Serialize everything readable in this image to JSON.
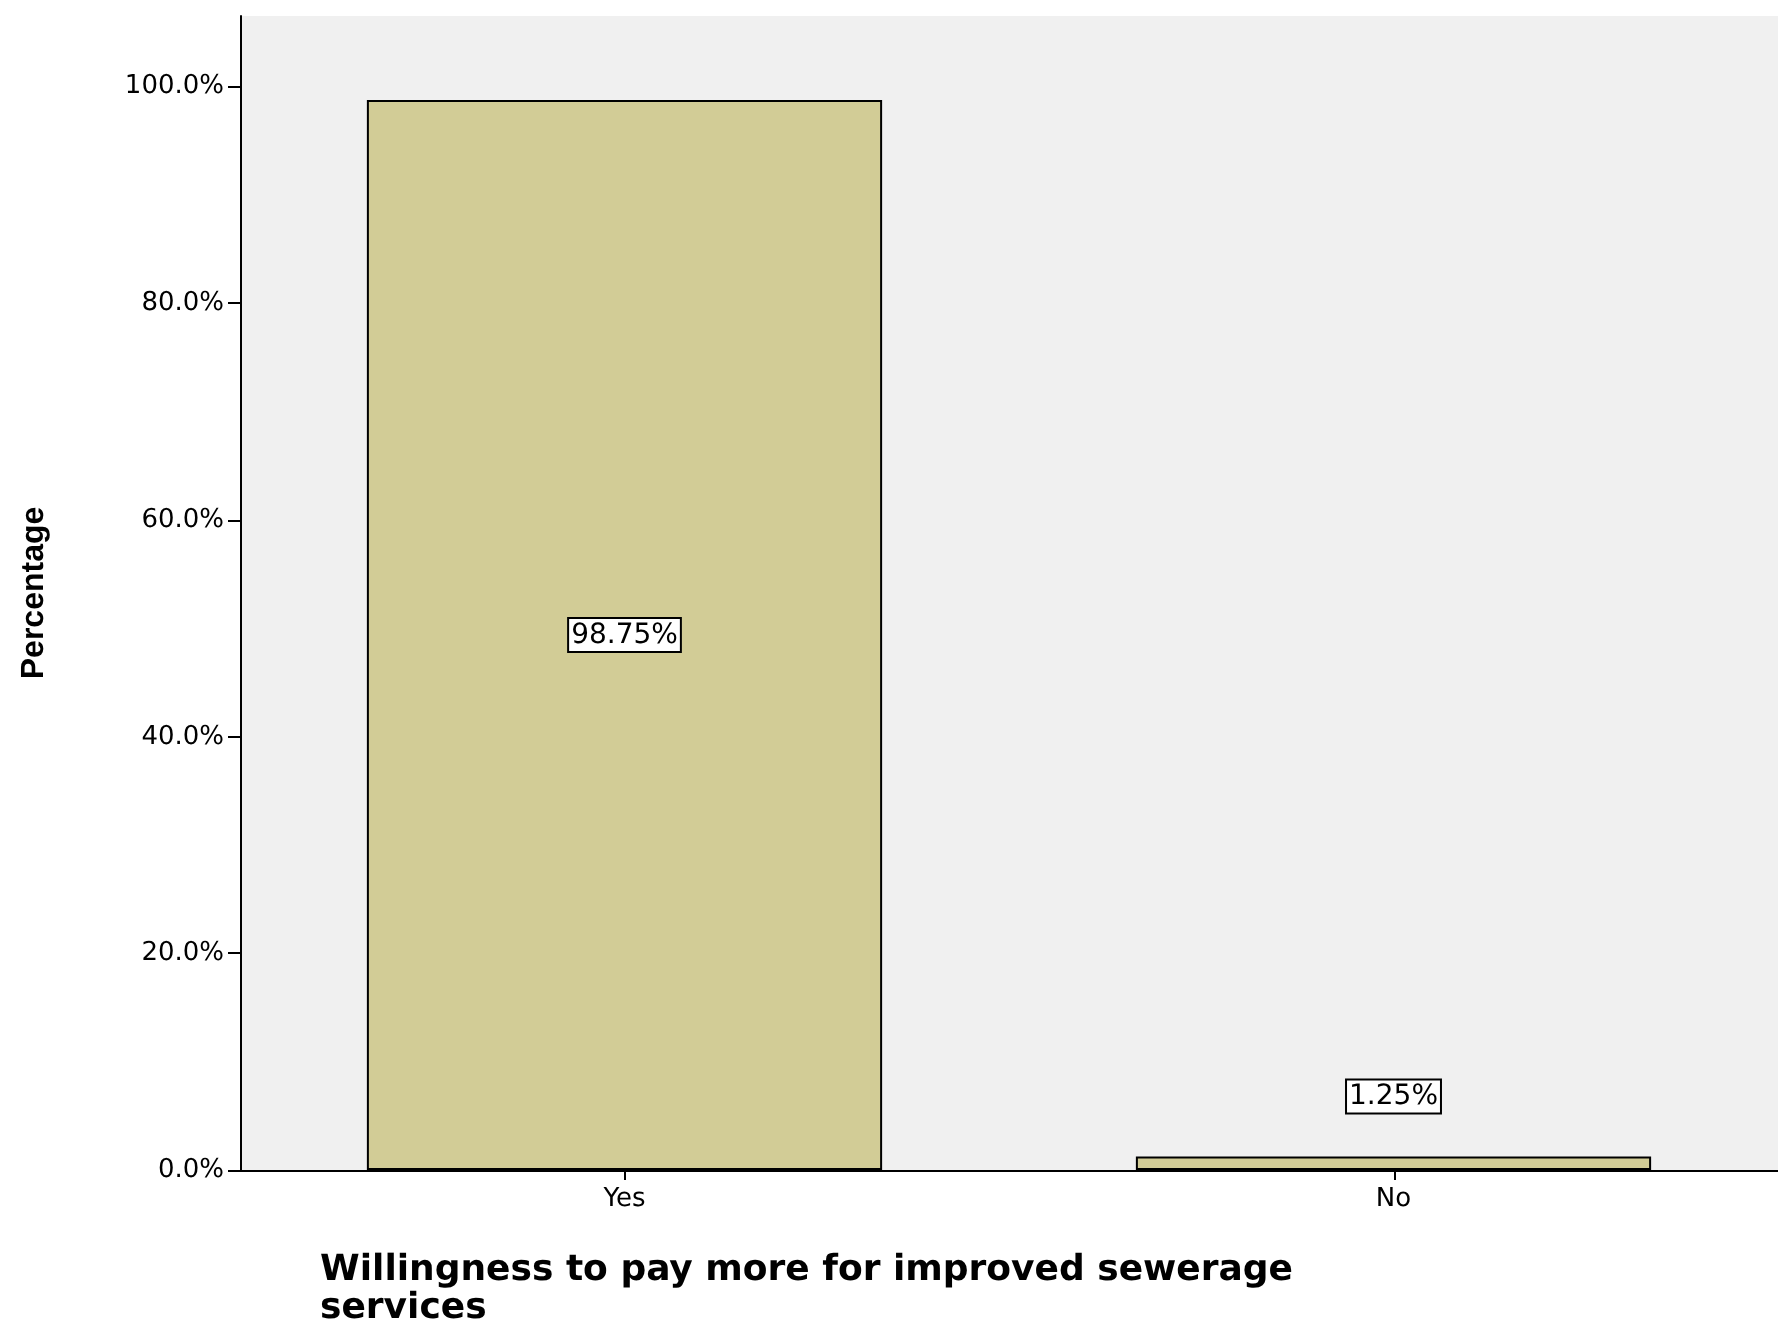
{
  "chart_data": {
    "type": "bar",
    "xlabel": "Willingness to pay more for improved sewerage services",
    "ylabel": "Percentage",
    "categories": [
      "Yes",
      "No"
    ],
    "values": [
      98.75,
      1.25
    ],
    "color": "#d2cc96",
    "value_labels": [
      "98.75%",
      "1.25%"
    ],
    "ylim": [
      0,
      106.5
    ],
    "yticks": [
      {
        "value": 0,
        "label": "0.0%"
      },
      {
        "value": 20,
        "label": "20.0%"
      },
      {
        "value": 40,
        "label": "40.0%"
      },
      {
        "value": 60,
        "label": "60.0%"
      },
      {
        "value": 80,
        "label": "80.0%"
      },
      {
        "value": 100,
        "label": "100.0%"
      }
    ],
    "grid": false
  }
}
